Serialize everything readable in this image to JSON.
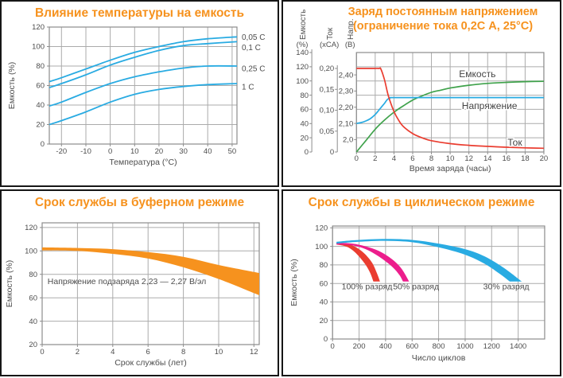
{
  "colors": {
    "accent": "#F6921E",
    "cyan": "#29ABE2",
    "green": "#3FA24B",
    "red": "#EA3D30",
    "magenta": "#EC1E8C",
    "grid": "#ABABAB",
    "frame": "#8C8C8C",
    "text": "#4D4D4D"
  },
  "chart_data": [
    {
      "id": "temperature-capacity",
      "type": "line",
      "title": "Влияние температуры на емкость",
      "xlabel": "Температура (°C)",
      "ylabel": "Емкость (%)",
      "xlim": [
        -25,
        52
      ],
      "ylim": [
        0,
        120
      ],
      "xticks": [
        -20,
        -10,
        0,
        10,
        20,
        30,
        40,
        50
      ],
      "yticks": [
        0,
        20,
        40,
        60,
        80,
        100,
        120
      ],
      "grid": true,
      "legend_position": "right",
      "series": [
        {
          "name": "0,05 C",
          "color_key": "cyan",
          "points": [
            [
              -25,
              64
            ],
            [
              -20,
              68
            ],
            [
              -10,
              77
            ],
            [
              0,
              86
            ],
            [
              10,
              94
            ],
            [
              20,
              100
            ],
            [
              30,
              105
            ],
            [
              40,
              108
            ],
            [
              52,
              110
            ]
          ]
        },
        {
          "name": "0,1 C",
          "color_key": "cyan",
          "points": [
            [
              -25,
              58
            ],
            [
              -20,
              62
            ],
            [
              -10,
              71
            ],
            [
              0,
              81
            ],
            [
              10,
              89
            ],
            [
              20,
              96
            ],
            [
              30,
              101
            ],
            [
              40,
              103
            ],
            [
              52,
              105
            ]
          ]
        },
        {
          "name": "0,25 C",
          "color_key": "cyan",
          "points": [
            [
              -25,
              39
            ],
            [
              -20,
              43
            ],
            [
              -10,
              53
            ],
            [
              0,
              62
            ],
            [
              10,
              69
            ],
            [
              20,
              74
            ],
            [
              30,
              78
            ],
            [
              40,
              80
            ],
            [
              52,
              80
            ]
          ]
        },
        {
          "name": "1 C",
          "color_key": "cyan",
          "points": [
            [
              -25,
              20
            ],
            [
              -20,
              24
            ],
            [
              -10,
              33
            ],
            [
              0,
              43
            ],
            [
              10,
              51
            ],
            [
              20,
              56
            ],
            [
              30,
              59
            ],
            [
              40,
              61
            ],
            [
              52,
              62
            ]
          ]
        }
      ]
    },
    {
      "id": "constant-voltage-charge",
      "type": "multi-axis-line",
      "title_lines": [
        "Заряд постоянным напряжением",
        "(ограничение тока 0,2C А, 25°C)"
      ],
      "xlabel": "Время заряда (часы)",
      "xlim": [
        0,
        20
      ],
      "xticks": [
        0,
        2,
        4,
        6,
        8,
        10,
        12,
        14,
        16,
        18,
        20
      ],
      "grid": true,
      "yaxes": [
        {
          "id": "capacity",
          "label": "Емкость",
          "unit": "(%)",
          "min": 0,
          "max": 140,
          "ticks": [
            0,
            20,
            40,
            60,
            80,
            100,
            120,
            140
          ],
          "tick_labels": [
            "0",
            "20",
            "40",
            "60",
            "80",
            "100",
            "120",
            "140"
          ]
        },
        {
          "id": "current",
          "label": "Ток",
          "unit": "(xCA)",
          "min": 0,
          "max": 0.2,
          "ticks": [
            0,
            0.05,
            0.1,
            0.15,
            0.2
          ],
          "tick_labels": [
            "0",
            "0,05",
            "0,10",
            "0,15",
            "0,20"
          ]
        },
        {
          "id": "voltage",
          "label": "Напр.",
          "unit": "(В)",
          "min": 2.0,
          "max": 2.4,
          "ticks": [
            2.0,
            2.1,
            2.2,
            2.3,
            2.4
          ],
          "tick_labels": [
            "2,0",
            "2,10",
            "2,20",
            "2,30",
            "2,40"
          ]
        }
      ],
      "series": [
        {
          "name": "Емкость",
          "axis": "capacity",
          "color_key": "green",
          "points": [
            [
              0,
              0
            ],
            [
              1,
              16
            ],
            [
              2,
              32
            ],
            [
              3,
              45
            ],
            [
              4,
              56
            ],
            [
              5,
              65
            ],
            [
              6,
              73
            ],
            [
              7,
              79
            ],
            [
              8,
              84
            ],
            [
              9,
              87
            ],
            [
              10,
              90
            ],
            [
              12,
              94
            ],
            [
              14,
              96.5
            ],
            [
              16,
              98
            ],
            [
              18,
              99
            ],
            [
              20,
              99.5
            ]
          ],
          "label_x": 12.9,
          "label_y_cap": 110
        },
        {
          "name": "Напряжение",
          "axis": "voltage",
          "color_key": "cyan",
          "points": [
            [
              0,
              2.1
            ],
            [
              0.5,
              2.105
            ],
            [
              1,
              2.115
            ],
            [
              1.5,
              2.13
            ],
            [
              2,
              2.155
            ],
            [
              2.5,
              2.19
            ],
            [
              3,
              2.225
            ],
            [
              3.3,
              2.248
            ],
            [
              3.6,
              2.258
            ],
            [
              4,
              2.26
            ],
            [
              8,
              2.26
            ],
            [
              14,
              2.26
            ],
            [
              20,
              2.26
            ]
          ],
          "label_x": 14.2,
          "label_y_cap": 65
        },
        {
          "name": "Ток",
          "axis": "current",
          "color_key": "red",
          "points": [
            [
              0,
              0.2
            ],
            [
              1.5,
              0.2
            ],
            [
              2.4,
              0.2
            ],
            [
              2.6,
              0.199
            ],
            [
              3,
              0.172
            ],
            [
              3.4,
              0.135
            ],
            [
              4,
              0.097
            ],
            [
              4.5,
              0.076
            ],
            [
              5,
              0.061
            ],
            [
              6,
              0.044
            ],
            [
              7,
              0.034
            ],
            [
              8,
              0.027
            ],
            [
              10,
              0.02
            ],
            [
              12,
              0.016
            ],
            [
              14,
              0.0135
            ],
            [
              16,
              0.0115
            ],
            [
              18,
              0.01
            ],
            [
              20,
              0.009
            ]
          ],
          "label_x": 16.9,
          "label_y_cap": 13.5
        }
      ]
    },
    {
      "id": "float-service-life",
      "type": "band",
      "title": "Срок службы в буферном режиме",
      "xlabel": "Срок службы (лет)",
      "ylabel": "Емкость (%)",
      "xlim": [
        0,
        12.3
      ],
      "ylim": [
        20,
        124
      ],
      "xticks": [
        0,
        2,
        4,
        6,
        8,
        10,
        12
      ],
      "yticks": [
        20,
        40,
        60,
        80,
        100,
        120
      ],
      "grid": true,
      "bands": [
        {
          "name": "float-band",
          "color_key": "accent",
          "upper": [
            [
              0,
              103
            ],
            [
              2,
              102.5
            ],
            [
              4,
              101.5
            ],
            [
              6,
              99
            ],
            [
              8,
              95
            ],
            [
              10,
              88
            ],
            [
              12,
              82
            ],
            [
              12.3,
              81
            ]
          ],
          "lower": [
            [
              0,
              100.5
            ],
            [
              2,
              100
            ],
            [
              4,
              97.5
            ],
            [
              6,
              93.5
            ],
            [
              8,
              86
            ],
            [
              10,
              76
            ],
            [
              12,
              64
            ],
            [
              12.3,
              62
            ]
          ]
        }
      ],
      "annotation": {
        "text": "Напряжение подзаряда 2,23 — 2,27 В/эл",
        "x": 4.8,
        "y": 74
      }
    },
    {
      "id": "cycle-service-life",
      "type": "band",
      "title": "Срок службы в циклическом режиме",
      "xlabel": "Число циклов",
      "ylabel": "Емкость (%)",
      "xlim": [
        0,
        1600
      ],
      "ylim": [
        0,
        122
      ],
      "xticks": [
        0,
        200,
        400,
        600,
        800,
        1000,
        1200,
        1400
      ],
      "yticks": [
        0,
        20,
        40,
        60,
        80,
        100,
        120
      ],
      "grid": true,
      "bands": [
        {
          "name": "100% разряд",
          "color_key": "red",
          "upper": [
            [
              30,
              104
            ],
            [
              100,
              103
            ],
            [
              150,
              101
            ],
            [
              200,
              97
            ],
            [
              250,
              91
            ],
            [
              300,
              82
            ],
            [
              335,
              71
            ],
            [
              358,
              62
            ]
          ],
          "lower": [
            [
              30,
              102
            ],
            [
              100,
              100
            ],
            [
              150,
              96
            ],
            [
              200,
              89
            ],
            [
              250,
              80
            ],
            [
              285,
              71
            ],
            [
              308,
              62
            ]
          ],
          "label_x": 260,
          "label_y": 56.5
        },
        {
          "name": "50% разряд",
          "color_key": "magenta",
          "upper": [
            [
              30,
              104
            ],
            [
              150,
              103
            ],
            [
              250,
              100
            ],
            [
              350,
              95
            ],
            [
              450,
              86
            ],
            [
              520,
              76
            ],
            [
              578,
              62
            ]
          ],
          "lower": [
            [
              30,
              102
            ],
            [
              150,
              101
            ],
            [
              250,
              97
            ],
            [
              350,
              89
            ],
            [
              450,
              78
            ],
            [
              505,
              69
            ],
            [
              532,
              62
            ]
          ],
          "label_x": 630,
          "label_y": 56.5
        },
        {
          "name": "30% разряд",
          "color_key": "cyan",
          "upper": [
            [
              30,
              105
            ],
            [
              200,
              107
            ],
            [
              400,
              108
            ],
            [
              600,
              107
            ],
            [
              800,
              103
            ],
            [
              1000,
              97
            ],
            [
              1150,
              89
            ],
            [
              1300,
              76
            ],
            [
              1428,
              62
            ]
          ],
          "lower": [
            [
              30,
              103
            ],
            [
              200,
              105
            ],
            [
              400,
              106
            ],
            [
              600,
              104.5
            ],
            [
              800,
              99
            ],
            [
              1000,
              91
            ],
            [
              1150,
              81
            ],
            [
              1255,
              71
            ],
            [
              1338,
              62
            ]
          ],
          "label_x": 1310,
          "label_y": 56.5
        }
      ]
    }
  ]
}
